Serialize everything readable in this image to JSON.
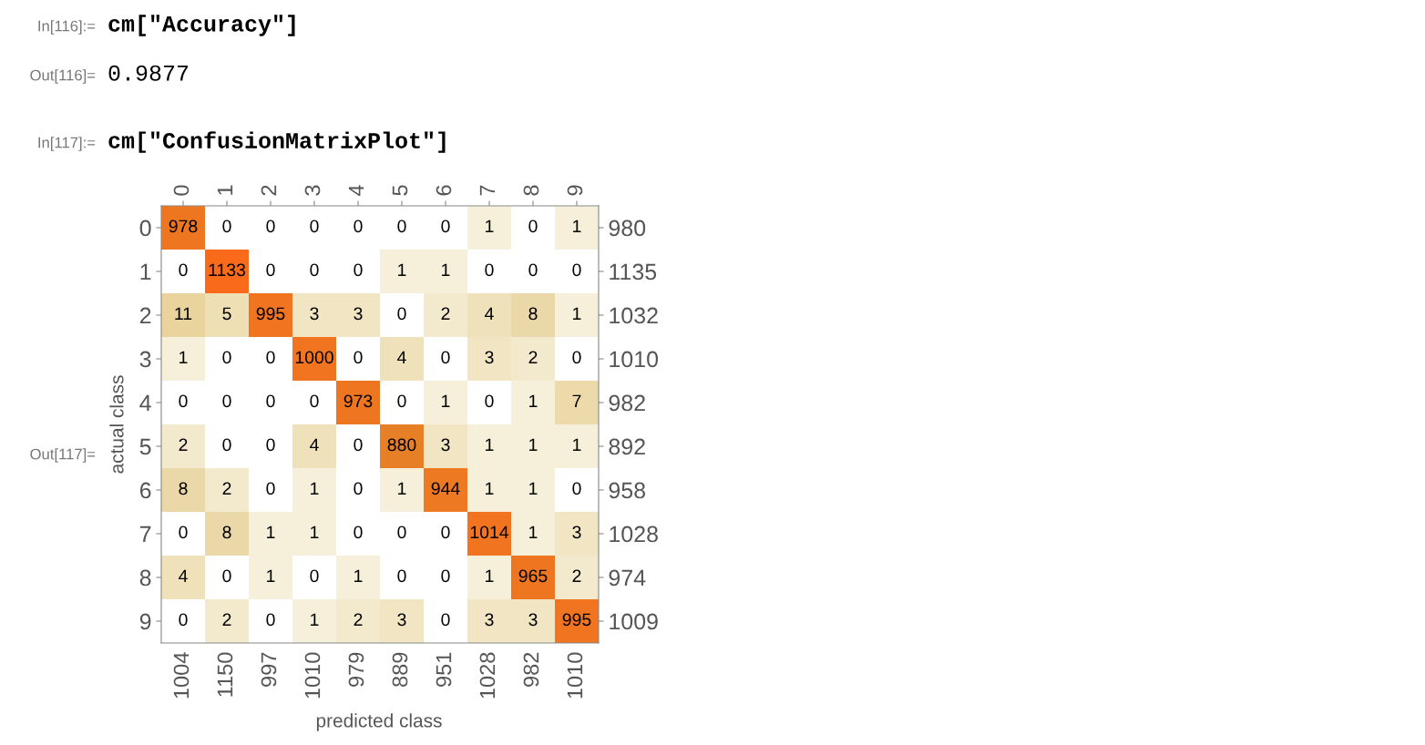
{
  "chart_data": {
    "type": "heatmap",
    "data_labels": true,
    "xlabel": "predicted class",
    "ylabel": "actual class",
    "categories": [
      "0",
      "1",
      "2",
      "3",
      "4",
      "5",
      "6",
      "7",
      "8",
      "9"
    ],
    "y_categories": [
      "0",
      "1",
      "2",
      "3",
      "4",
      "5",
      "6",
      "7",
      "8",
      "9"
    ],
    "y2_categories": [
      "980",
      "1135",
      "1032",
      "1010",
      "982",
      "892",
      "958",
      "1028",
      "974",
      "1009"
    ],
    "cells": [
      [
        978,
        0,
        0,
        0,
        0,
        0,
        0,
        1,
        0,
        1
      ],
      [
        0,
        1133,
        0,
        0,
        0,
        1,
        1,
        0,
        0,
        0
      ],
      [
        11,
        5,
        995,
        3,
        3,
        0,
        2,
        4,
        8,
        1
      ],
      [
        1,
        0,
        0,
        1000,
        0,
        4,
        0,
        3,
        2,
        0
      ],
      [
        0,
        0,
        0,
        0,
        973,
        0,
        1,
        0,
        1,
        7
      ],
      [
        2,
        0,
        0,
        4,
        0,
        880,
        3,
        1,
        1,
        1
      ],
      [
        8,
        2,
        0,
        1,
        0,
        1,
        944,
        1,
        1,
        0
      ],
      [
        0,
        8,
        1,
        1,
        0,
        0,
        0,
        1014,
        1,
        3
      ],
      [
        4,
        0,
        1,
        0,
        1,
        0,
        0,
        1,
        965,
        2
      ],
      [
        0,
        2,
        0,
        1,
        2,
        3,
        0,
        3,
        3,
        995
      ]
    ],
    "annotations": [
      "In[116]:=",
      "cm[\"Accuracy\"]",
      "Out[116]=",
      "0.9877",
      "In[117]:=",
      "cm[\"ConfusionMatrixPlot\"]",
      "Out[117]=",
      "1004",
      "1150",
      "997",
      "1010",
      "979",
      "889",
      "951",
      "1028",
      "982",
      "1010"
    ]
  }
}
